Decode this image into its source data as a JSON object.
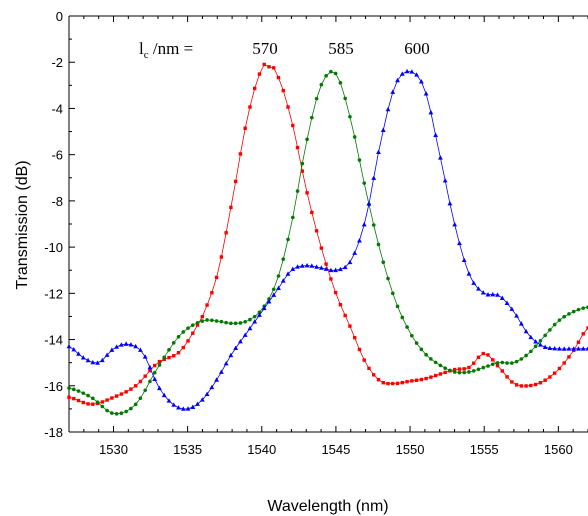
{
  "chart_data": {
    "type": "line",
    "title": "",
    "xlabel": "Wavelength (nm)",
    "ylabel": "Transmission (dB)",
    "xlim": [
      1527,
      1562
    ],
    "ylim": [
      -18,
      0
    ],
    "x_ticks": [
      1530,
      1535,
      1540,
      1545,
      1550,
      1555,
      1560
    ],
    "y_ticks": [
      0,
      -2,
      -4,
      -6,
      -8,
      -10,
      -12,
      -14,
      -16,
      -18
    ],
    "grid": false,
    "legend_header": "l",
    "legend_header_sub": "c",
    "legend_header_rest": " /nm =",
    "markers_per_series": 110,
    "series": [
      {
        "name": "570",
        "color": "#ff0000",
        "marker": "square",
        "x": [
          1527,
          1528.5,
          1530,
          1531.5,
          1533,
          1534.5,
          1536,
          1537,
          1538,
          1539,
          1540,
          1540.5,
          1541,
          1542,
          1543,
          1544,
          1545,
          1546,
          1547,
          1548,
          1549,
          1550,
          1551,
          1552,
          1553,
          1554,
          1555,
          1556,
          1557,
          1558,
          1559,
          1560,
          1561,
          1562
        ],
        "values": [
          -16.5,
          -16.8,
          -16.5,
          -16.0,
          -15.0,
          -14.5,
          -13.0,
          -11.2,
          -8.0,
          -4.5,
          -2.3,
          -2.2,
          -2.5,
          -4.5,
          -7.5,
          -10.0,
          -12.0,
          -13.5,
          -15.0,
          -15.8,
          -15.9,
          -15.8,
          -15.7,
          -15.5,
          -15.3,
          -15.2,
          -14.6,
          -15.2,
          -15.9,
          -16.0,
          -15.8,
          -15.3,
          -14.5,
          -13.5
        ]
      },
      {
        "name": "585",
        "color": "#007a00",
        "marker": "circle",
        "x": [
          1527,
          1528.5,
          1530,
          1531.5,
          1533,
          1534.5,
          1536,
          1537,
          1538,
          1539,
          1540,
          1541,
          1542,
          1543,
          1544,
          1545,
          1546,
          1547,
          1548,
          1549,
          1550,
          1551,
          1552,
          1553,
          1554,
          1555,
          1556,
          1557,
          1558,
          1559,
          1560,
          1561,
          1562
        ],
        "values": [
          -16.1,
          -16.5,
          -17.2,
          -16.8,
          -15.2,
          -13.8,
          -13.2,
          -13.2,
          -13.3,
          -13.2,
          -12.7,
          -11.5,
          -9.0,
          -5.5,
          -3.0,
          -2.5,
          -4.5,
          -7.5,
          -10.2,
          -12.3,
          -13.7,
          -14.6,
          -15.1,
          -15.4,
          -15.4,
          -15.2,
          -15.0,
          -15.0,
          -14.6,
          -13.9,
          -13.2,
          -12.8,
          -12.6
        ]
      },
      {
        "name": "600",
        "color": "#0000ff",
        "marker": "triangle",
        "x": [
          1527,
          1528,
          1529,
          1530,
          1531,
          1532,
          1533,
          1534,
          1535,
          1536,
          1537,
          1538,
          1539,
          1540,
          1541,
          1542,
          1543,
          1544,
          1545,
          1546,
          1547,
          1548,
          1549,
          1550,
          1551,
          1552,
          1553,
          1554,
          1555,
          1556,
          1557,
          1558,
          1559,
          1560,
          1561,
          1562
        ],
        "values": [
          -14.3,
          -14.8,
          -15.0,
          -14.4,
          -14.2,
          -14.6,
          -16.0,
          -16.8,
          -17.0,
          -16.6,
          -15.7,
          -14.6,
          -13.7,
          -12.8,
          -11.9,
          -11.0,
          -10.8,
          -10.9,
          -11.0,
          -10.6,
          -8.8,
          -5.5,
          -3.0,
          -2.4,
          -3.2,
          -6.0,
          -9.0,
          -11.2,
          -12.0,
          -12.1,
          -12.8,
          -13.8,
          -14.3,
          -14.4,
          -14.4,
          -14.4
        ]
      }
    ]
  }
}
